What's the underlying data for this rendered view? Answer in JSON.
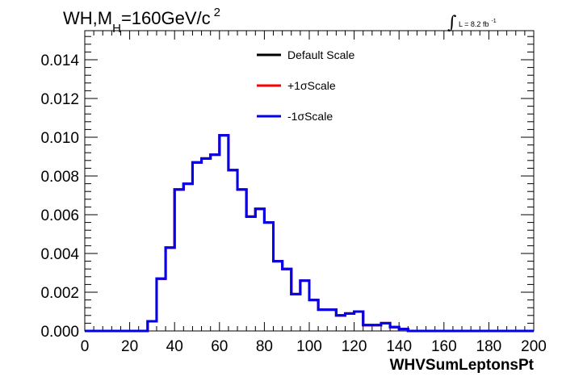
{
  "chart_data": {
    "type": "line",
    "title": {
      "main": "WH,M",
      "subscript": "H",
      "rest": "=160GeV/c",
      "superscript": "2"
    },
    "lumi": {
      "integral": "∫",
      "text": "L = 8.2 fb",
      "superscript": "-1"
    },
    "xlabel": "WHVSumLeptonsPt",
    "ylabel": "",
    "xlim": [
      0,
      200
    ],
    "ylim": [
      0,
      0.0155
    ],
    "x_ticks": [
      "0",
      "20",
      "40",
      "60",
      "80",
      "100",
      "120",
      "140",
      "160",
      "180",
      "200"
    ],
    "y_ticks": [
      "0.000",
      "0.002",
      "0.004",
      "0.006",
      "0.008",
      "0.010",
      "0.012",
      "0.014"
    ],
    "bin_width": 4,
    "bin_edges_start": 0,
    "legend_position": "top-center",
    "series": [
      {
        "name": "Default Scale",
        "color": "#000000",
        "values": [
          0,
          0,
          0,
          0,
          0,
          0,
          0,
          0.0005,
          0.0027,
          0.0043,
          0.0073,
          0.0076,
          0.0087,
          0.0089,
          0.0091,
          0.0101,
          0.0083,
          0.0073,
          0.0059,
          0.0063,
          0.0056,
          0.0036,
          0.0032,
          0.0019,
          0.0026,
          0.0016,
          0.0011,
          0.0011,
          0.0008,
          0.0009,
          0.001,
          0.0003,
          0.0003,
          0.0004,
          0.0002,
          0.0001,
          0,
          0,
          0,
          0,
          0,
          0,
          0,
          0,
          0,
          0,
          0,
          0,
          0,
          0
        ]
      },
      {
        "name": "+1σScale",
        "color": "#ff0000",
        "values": [
          0,
          0,
          0,
          0,
          0,
          0,
          0,
          0.0005,
          0.0027,
          0.0043,
          0.0073,
          0.0076,
          0.0087,
          0.0089,
          0.0091,
          0.0101,
          0.0083,
          0.0073,
          0.0059,
          0.0063,
          0.0056,
          0.0036,
          0.0032,
          0.0019,
          0.0026,
          0.0016,
          0.0011,
          0.0011,
          0.0008,
          0.0009,
          0.001,
          0.0003,
          0.0003,
          0.0004,
          0.0002,
          0.0001,
          0,
          0,
          0,
          0,
          0,
          0,
          0,
          0,
          0,
          0,
          0,
          0,
          0,
          0
        ]
      },
      {
        "name": "-1σScale",
        "color": "#0000ee",
        "values": [
          0,
          0,
          0,
          0,
          0,
          0,
          0,
          0.0005,
          0.0027,
          0.0043,
          0.0073,
          0.0076,
          0.0087,
          0.0089,
          0.0091,
          0.0101,
          0.0083,
          0.0073,
          0.0059,
          0.0063,
          0.0056,
          0.0036,
          0.0032,
          0.0019,
          0.0026,
          0.0016,
          0.0011,
          0.0011,
          0.0008,
          0.0009,
          0.001,
          0.0003,
          0.0003,
          0.0004,
          0.0002,
          0.0001,
          0,
          0,
          0,
          0,
          0,
          0,
          0,
          0,
          0,
          0,
          0,
          0,
          0,
          0
        ]
      }
    ],
    "grid": false
  }
}
